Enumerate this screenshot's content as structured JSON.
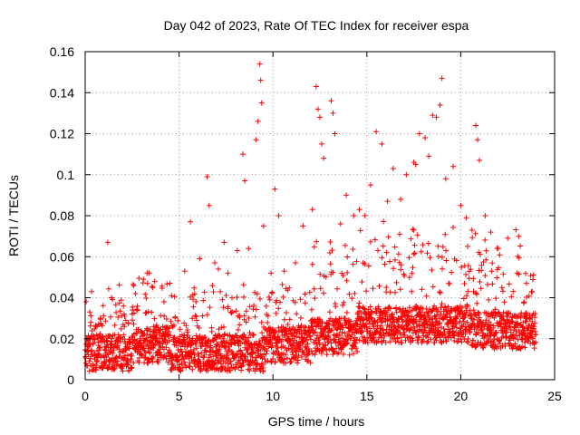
{
  "colors": {
    "series": "#ff0000",
    "grid": "#a0a0a0",
    "axis": "#000000"
  },
  "chart_data": {
    "type": "scatter",
    "title": "Day 042 of 2023, Rate Of TEC Index for receiver espa",
    "xlabel": "GPS time / hours",
    "ylabel": "ROTI / TECUs",
    "xlim": [
      0,
      25
    ],
    "ylim": [
      0,
      0.16
    ],
    "x_ticks": [
      0,
      5,
      10,
      15,
      20,
      25
    ],
    "x_tick_labels": [
      "0",
      "5",
      "10",
      "15",
      "20",
      "25"
    ],
    "y_ticks": [
      0,
      0.02,
      0.04,
      0.06,
      0.08,
      0.1,
      0.12,
      0.14,
      0.16
    ],
    "y_tick_labels": [
      "0",
      "0.02",
      "0.04",
      "0.06",
      "0.08",
      "0.1",
      "0.12",
      "0.14",
      "0.16"
    ],
    "grid": true,
    "marker": "+",
    "series": [
      {
        "x": [
          0.3,
          0.8,
          1.2,
          1.4,
          2.1,
          2.5,
          3.1,
          3.3,
          3.6,
          3.7,
          4.2,
          4.6,
          5.3,
          5.6,
          6.1,
          6.5,
          6.6,
          6.9,
          7.1,
          7.4,
          7.6,
          8.1,
          8.4,
          8.5,
          8.7,
          9.1,
          9.2,
          9.3,
          9.35,
          9.4,
          9.5,
          9.9,
          10.1,
          10.3,
          10.6,
          11.2,
          11.6,
          12.1,
          12.3,
          12.4,
          12.5,
          12.6,
          12.7,
          13.1,
          13.2,
          13.3,
          13.6,
          13.9,
          14.3,
          14.6,
          14.9,
          15.2,
          15.5,
          15.8,
          16.1,
          16.4,
          16.8,
          17.1,
          17.5,
          17.6,
          17.8,
          18.1,
          18.3,
          18.5,
          18.7,
          18.9,
          19.0,
          19.2,
          19.6,
          20.0,
          20.3,
          20.6,
          20.8,
          20.9,
          21.0,
          21.3,
          21.6,
          22.0,
          22.5,
          23.0,
          23.5,
          23.8
        ],
        "y": [
          0.028,
          0.03,
          0.067,
          0.04,
          0.031,
          0.032,
          0.049,
          0.052,
          0.045,
          0.048,
          0.038,
          0.041,
          0.053,
          0.077,
          0.059,
          0.099,
          0.085,
          0.057,
          0.054,
          0.067,
          0.052,
          0.063,
          0.11,
          0.097,
          0.064,
          0.117,
          0.126,
          0.154,
          0.146,
          0.135,
          0.075,
          0.052,
          0.093,
          0.08,
          0.053,
          0.057,
          0.075,
          0.083,
          0.143,
          0.132,
          0.128,
          0.115,
          0.108,
          0.136,
          0.13,
          0.12,
          0.076,
          0.09,
          0.08,
          0.083,
          0.08,
          0.095,
          0.121,
          0.115,
          0.087,
          0.103,
          0.088,
          0.1,
          0.106,
          0.105,
          0.12,
          0.118,
          0.109,
          0.129,
          0.128,
          0.134,
          0.147,
          0.098,
          0.104,
          0.085,
          0.079,
          0.073,
          0.124,
          0.117,
          0.107,
          0.08,
          0.072,
          0.064,
          0.069,
          0.052,
          0.047,
          0.043
        ]
      }
    ]
  }
}
